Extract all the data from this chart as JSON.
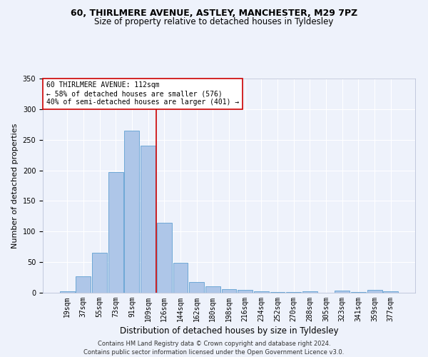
{
  "title1": "60, THIRLMERE AVENUE, ASTLEY, MANCHESTER, M29 7PZ",
  "title2": "Size of property relative to detached houses in Tyldesley",
  "xlabel": "Distribution of detached houses by size in Tyldesley",
  "ylabel": "Number of detached properties",
  "bin_labels": [
    "19sqm",
    "37sqm",
    "55sqm",
    "73sqm",
    "91sqm",
    "109sqm",
    "126sqm",
    "144sqm",
    "162sqm",
    "180sqm",
    "198sqm",
    "216sqm",
    "234sqm",
    "252sqm",
    "270sqm",
    "288sqm",
    "305sqm",
    "323sqm",
    "341sqm",
    "359sqm",
    "377sqm"
  ],
  "bar_values": [
    2,
    27,
    65,
    197,
    265,
    240,
    114,
    49,
    18,
    10,
    6,
    5,
    2,
    1,
    1,
    2,
    0,
    3,
    1,
    5,
    2
  ],
  "bar_color": "#aec6e8",
  "bar_edgecolor": "#6fa8d6",
  "vline_color": "#cc0000",
  "vline_pos": 5.5,
  "annotation_text": "60 THIRLMERE AVENUE: 112sqm\n← 58% of detached houses are smaller (576)\n40% of semi-detached houses are larger (401) →",
  "annotation_box_edgecolor": "#cc0000",
  "annotation_box_facecolor": "#ffffff",
  "ylim": [
    0,
    350
  ],
  "yticks": [
    0,
    50,
    100,
    150,
    200,
    250,
    300,
    350
  ],
  "footer_text": "Contains HM Land Registry data © Crown copyright and database right 2024.\nContains public sector information licensed under the Open Government Licence v3.0.",
  "background_color": "#eef2fb",
  "grid_color": "#ffffff",
  "title1_fontsize": 9,
  "title2_fontsize": 8.5,
  "ylabel_fontsize": 8,
  "xlabel_fontsize": 8.5,
  "tick_fontsize": 7,
  "annotation_fontsize": 7,
  "footer_fontsize": 6
}
